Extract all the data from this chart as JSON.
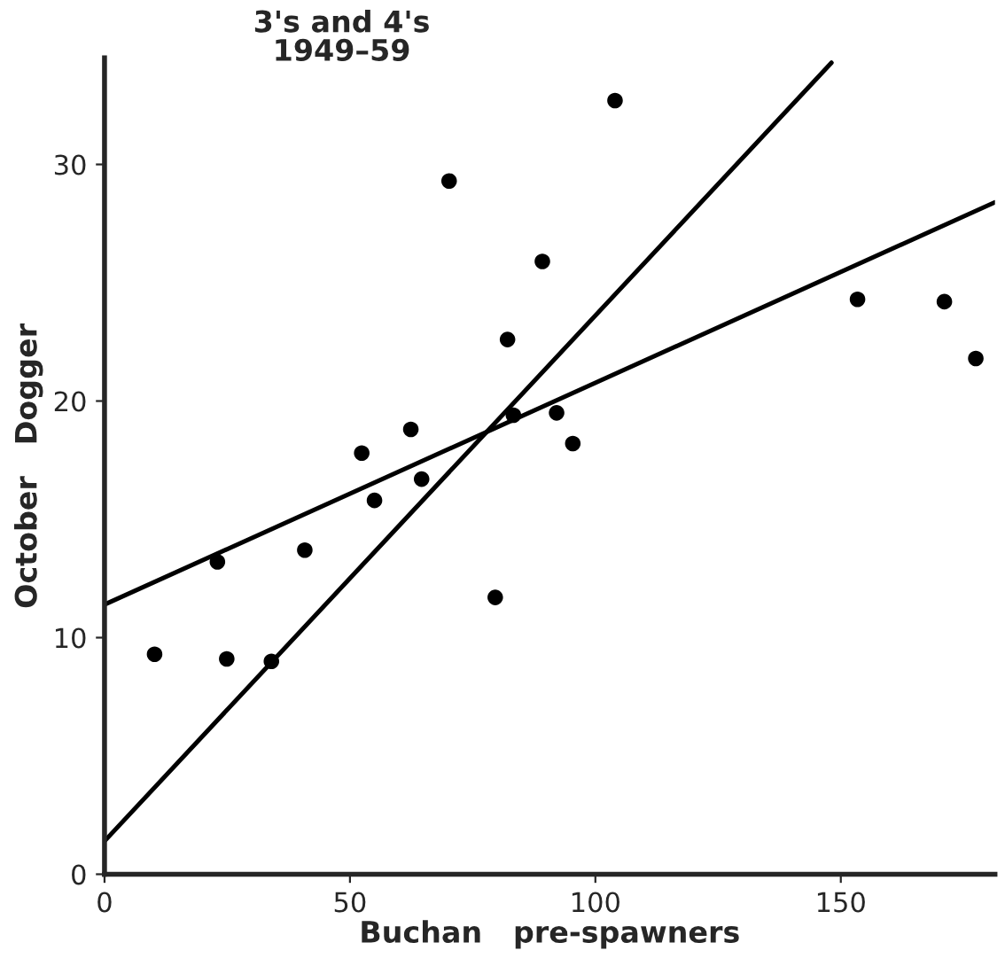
{
  "chart_data": {
    "type": "scatter",
    "title": "3's and 4's\n1949–59",
    "xlabel": "Buchan   pre-spawners",
    "ylabel": "October   Dogger",
    "series": [
      {
        "color": "#000000",
        "marker": "circle",
        "x": [
          10.2,
          23.0,
          24.9,
          34.0,
          40.8,
          52.4,
          55.0,
          62.4,
          64.6,
          79.6,
          83.3,
          92.1,
          70.2,
          89.2,
          82.1,
          104.0,
          95.4,
          153.4,
          171.1,
          177.5
        ],
        "values": [
          9.3,
          13.2,
          9.1,
          9.0,
          13.7,
          17.8,
          15.8,
          18.8,
          16.7,
          11.7,
          19.4,
          19.5,
          29.3,
          25.9,
          22.6,
          32.7,
          18.2,
          24.3,
          24.2,
          21.8
        ]
      },
      {
        "type": "line",
        "color": "#000000",
        "x": [
          0,
          148.1
        ],
        "values": [
          1.4,
          34.3
        ]
      },
      {
        "type": "line",
        "color": "#000000",
        "x": [
          0,
          181.4
        ],
        "values": [
          11.4,
          28.4
        ]
      }
    ],
    "xlim": [
      0,
      181.4
    ],
    "ylim": [
      0,
      34.5
    ],
    "xticks": [
      0,
      50,
      100,
      150
    ],
    "yticks": [
      0,
      10,
      20,
      30
    ],
    "grid": false
  }
}
